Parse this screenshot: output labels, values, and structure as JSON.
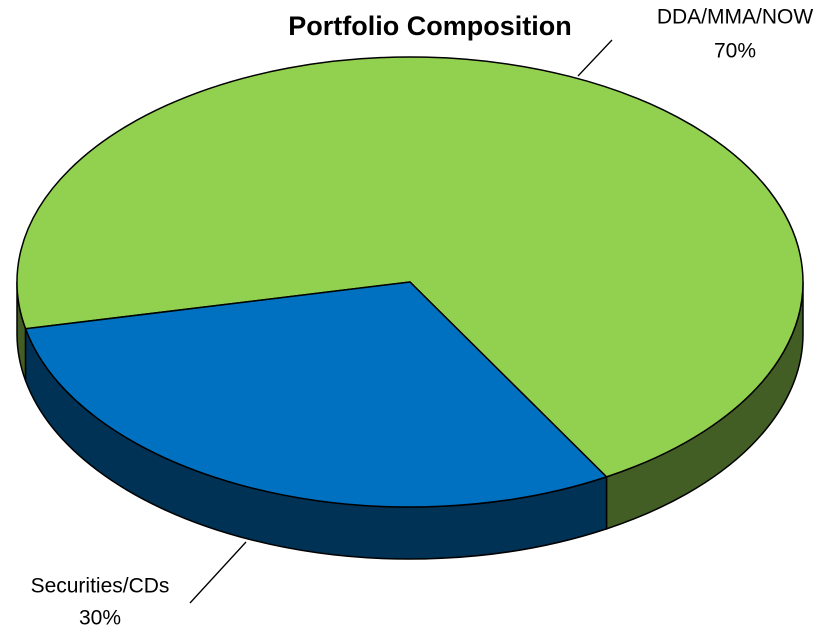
{
  "chart_data": {
    "type": "pie3d",
    "title": "Portfolio Composition",
    "categories": [
      "DDA/MMA/NOW",
      "Securities/CDs"
    ],
    "values": [
      70,
      30
    ],
    "value_labels": [
      "70%",
      "30%"
    ],
    "colors": [
      "#92d050",
      "#0070c0"
    ]
  }
}
